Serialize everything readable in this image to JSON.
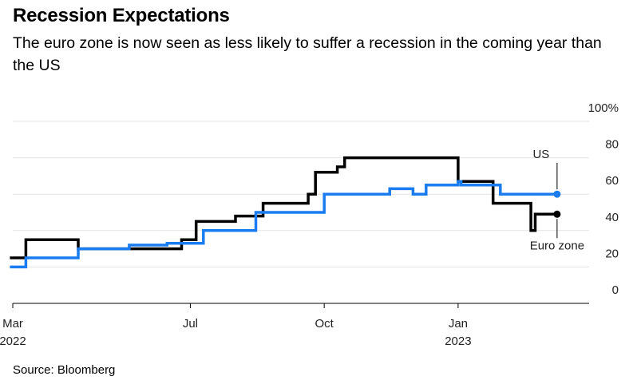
{
  "title": "Recession Expectations",
  "subtitle": "The euro zone is now seen as less likely to suffer a recession in the coming year than the US",
  "source": "Source: Bloomberg",
  "colors": {
    "us": "#1a7cf0",
    "euro_zone": "#000000",
    "grid": "#e3e3e3",
    "axis": "#000000"
  },
  "chart_data": {
    "type": "line",
    "title": "Recession Expectations",
    "subtitle": "The euro zone is now seen as less likely to suffer a recession in the coming year than the US",
    "y_unit": "%",
    "ylim": [
      0,
      100
    ],
    "xlim": [
      "2022-03-01",
      "2023-04-01"
    ],
    "grid": true,
    "y_ticks": [
      {
        "value": 0,
        "label": "0"
      },
      {
        "value": 20,
        "label": "20"
      },
      {
        "value": 40,
        "label": "40"
      },
      {
        "value": 60,
        "label": "60"
      },
      {
        "value": 80,
        "label": "80"
      },
      {
        "value": 100,
        "label": "100%"
      }
    ],
    "x_ticks": [
      {
        "date": "2022-03-01",
        "label": "Mar",
        "sublabel": "2022"
      },
      {
        "date": "2022-07-01",
        "label": "Jul",
        "sublabel": ""
      },
      {
        "date": "2022-10-01",
        "label": "Oct",
        "sublabel": ""
      },
      {
        "date": "2023-01-01",
        "label": "Jan",
        "sublabel": "2023"
      }
    ],
    "series": [
      {
        "name": "Euro zone",
        "color": "#000000",
        "step": true,
        "end_marker": true,
        "points": [
          [
            "2022-02-27",
            25
          ],
          [
            "2022-03-10",
            35
          ],
          [
            "2022-04-15",
            30
          ],
          [
            "2022-06-25",
            35
          ],
          [
            "2022-07-05",
            45
          ],
          [
            "2022-08-01",
            48
          ],
          [
            "2022-08-20",
            55
          ],
          [
            "2022-09-20",
            60
          ],
          [
            "2022-09-25",
            72
          ],
          [
            "2022-10-10",
            75
          ],
          [
            "2022-10-15",
            80
          ],
          [
            "2023-01-01",
            67
          ],
          [
            "2023-01-25",
            55
          ],
          [
            "2023-02-20",
            40
          ],
          [
            "2023-02-23",
            49
          ],
          [
            "2023-03-10",
            49
          ]
        ]
      },
      {
        "name": "US",
        "color": "#1a7cf0",
        "step": true,
        "end_marker": true,
        "points": [
          [
            "2022-02-27",
            20
          ],
          [
            "2022-03-10",
            25
          ],
          [
            "2022-04-15",
            30
          ],
          [
            "2022-05-20",
            32
          ],
          [
            "2022-06-15",
            33
          ],
          [
            "2022-07-10",
            40
          ],
          [
            "2022-08-15",
            50
          ],
          [
            "2022-10-01",
            60
          ],
          [
            "2022-11-15",
            63
          ],
          [
            "2022-12-01",
            60
          ],
          [
            "2022-12-10",
            65
          ],
          [
            "2023-01-01",
            67
          ],
          [
            "2023-01-03",
            65
          ],
          [
            "2023-01-30",
            60
          ],
          [
            "2023-03-10",
            60
          ]
        ]
      }
    ],
    "annotations": [
      {
        "series": "US",
        "text": "US",
        "position": "above"
      },
      {
        "series": "Euro zone",
        "text": "Euro zone",
        "position": "below"
      }
    ]
  }
}
